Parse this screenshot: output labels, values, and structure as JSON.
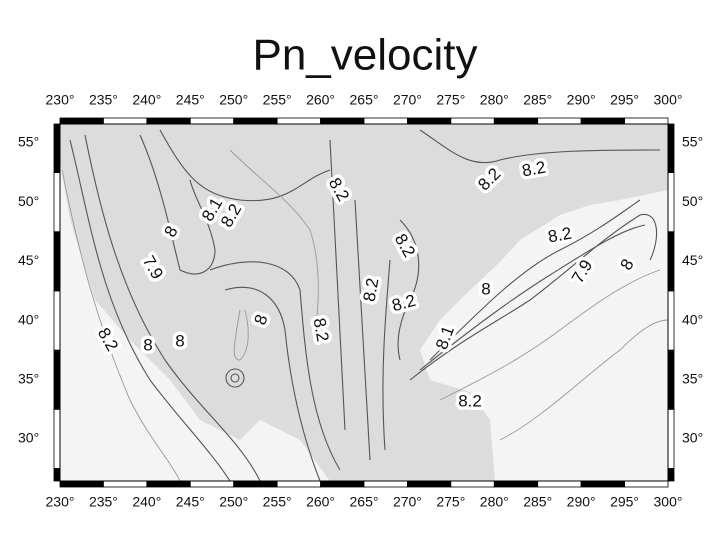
{
  "title": "Pn_velocity",
  "longitude_labels": [
    "230°",
    "235°",
    "240°",
    "245°",
    "250°",
    "255°",
    "260°",
    "265°",
    "270°",
    "275°",
    "280°",
    "285°",
    "290°",
    "295°",
    "300°"
  ],
  "latitude_labels": [
    "55°",
    "50°",
    "45°",
    "40°",
    "35°",
    "30°"
  ],
  "contour_labels": [
    "8.2",
    "8.2",
    "8.2",
    "8.1",
    "8.2",
    "8",
    "7.9",
    "8.2",
    "8.2",
    "8.2",
    "8.2",
    "8",
    "7.9",
    "8",
    "8",
    "8.2",
    "8.2",
    "8",
    "8",
    "8.1",
    "8.2"
  ]
}
